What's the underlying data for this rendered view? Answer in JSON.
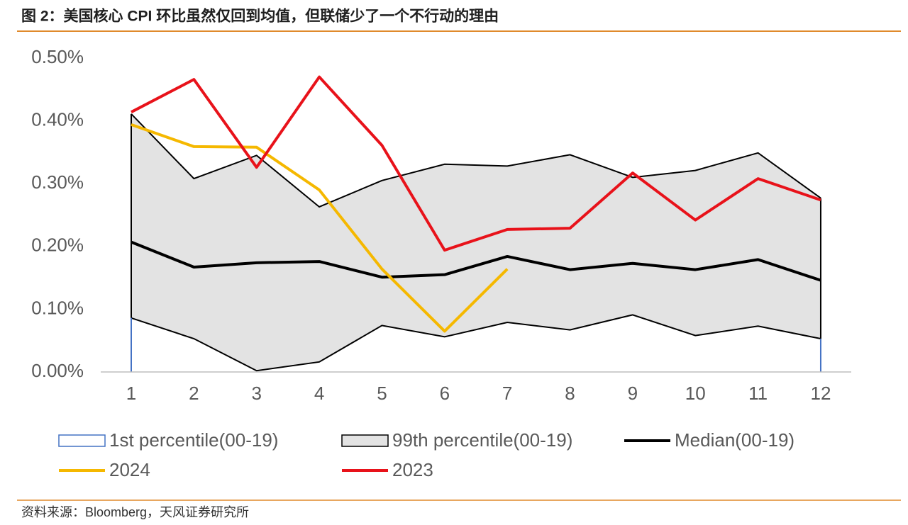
{
  "chart_data": {
    "type": "line",
    "title": "图 2：美国核心 CPI 环比虽然仅回到均值，但联储少了一个不行动的理由",
    "source": "资料来源：Bloomberg，天风证券研究所",
    "categories": [
      "1",
      "2",
      "3",
      "4",
      "5",
      "6",
      "7",
      "8",
      "9",
      "10",
      "11",
      "12"
    ],
    "ylim": [
      0,
      0.5
    ],
    "yticks": [
      {
        "value": 0,
        "label": "0.00%"
      },
      {
        "value": 0.1,
        "label": "0.10%"
      },
      {
        "value": 0.2,
        "label": "0.20%"
      },
      {
        "value": 0.3,
        "label": "0.30%"
      },
      {
        "value": 0.4,
        "label": "0.40%"
      },
      {
        "value": 0.5,
        "label": "0.50%"
      }
    ],
    "series": [
      {
        "name": "1st percentile(00-19)",
        "color": "#4472c4",
        "style": "area",
        "values": [
          0.086,
          0.053,
          0.002,
          0.016,
          0.074,
          0.056,
          0.079,
          0.067,
          0.091,
          0.058,
          0.073,
          0.053
        ]
      },
      {
        "name": "99th percentile(00-19)",
        "color": "#e3e3e3",
        "style": "band",
        "values": [
          0.411,
          0.308,
          0.345,
          0.263,
          0.305,
          0.331,
          0.328,
          0.346,
          0.31,
          0.321,
          0.349,
          0.277
        ]
      },
      {
        "name": "Median(00-19)",
        "color": "#000000",
        "style": "line",
        "values": [
          0.207,
          0.167,
          0.174,
          0.176,
          0.151,
          0.155,
          0.184,
          0.163,
          0.173,
          0.163,
          0.179,
          0.146
        ]
      },
      {
        "name": "2024",
        "color": "#f5b800",
        "style": "line",
        "values": [
          0.394,
          0.359,
          0.358,
          0.29,
          0.164,
          0.065,
          0.164,
          null,
          null,
          null,
          null,
          null
        ]
      },
      {
        "name": "2023",
        "color": "#e8121a",
        "style": "line",
        "values": [
          0.414,
          0.466,
          0.326,
          0.47,
          0.361,
          0.194,
          0.227,
          0.229,
          0.317,
          0.242,
          0.308,
          0.274
        ]
      }
    ]
  }
}
